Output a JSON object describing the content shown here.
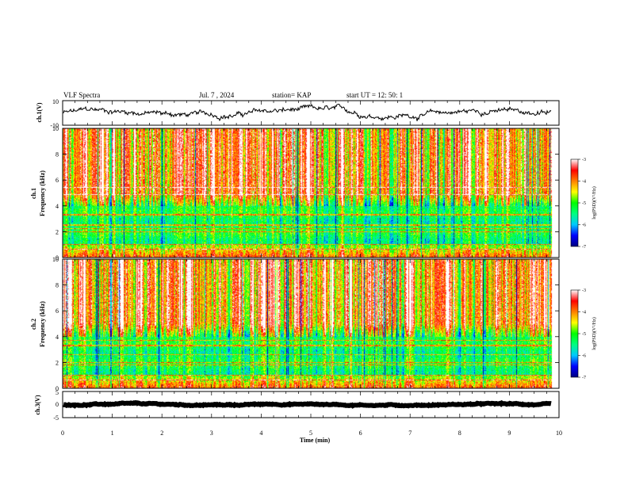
{
  "header": {
    "title": "VLF Spectra",
    "date": "Jul. 7 , 2024",
    "station": "station= KAP",
    "start": "start UT =  12: 50: 1"
  },
  "chart_data": [
    {
      "type": "line",
      "ylabel": "ch.1(V)",
      "xlim": [
        0,
        10
      ],
      "ylim": [
        -10,
        10
      ],
      "y_tick_labels": [
        "10",
        "-10"
      ],
      "series": [
        {
          "color": "#000000"
        }
      ],
      "signal_mean": 0,
      "signal_amplitude": 5
    },
    {
      "type": "heatmap",
      "ylabel_top": "ch.1",
      "ylabel": "Frequency (kHz)",
      "xlim": [
        0,
        10
      ],
      "ylim": [
        0,
        10
      ],
      "data_end_x": 9.85,
      "y_tick_labels": [
        "0",
        "2",
        "4",
        "6",
        "8",
        "10"
      ],
      "colorbar": {
        "label": "log(PSD)(V²/Hz)",
        "range": [
          -7,
          -3
        ],
        "tick_labels": [
          "-3",
          "-4",
          "-5",
          "-6",
          "-7"
        ],
        "colors": [
          "#000080",
          "#0000ff",
          "#00c8ff",
          "#00ff80",
          "#00ff00",
          "#ffff00",
          "#ff8000",
          "#ff0000",
          "#ffffff"
        ]
      },
      "narrowband_lines_khz": [
        4.9,
        5.45,
        3.3,
        2.5,
        2.2,
        2.0,
        1.0,
        0.6
      ]
    },
    {
      "type": "heatmap",
      "ylabel_top": "ch.2",
      "ylabel": "Frequency (kHz)",
      "xlim": [
        0,
        10
      ],
      "ylim": [
        0,
        10
      ],
      "data_end_x": 9.85,
      "y_tick_labels": [
        "0",
        "2",
        "4",
        "6",
        "8",
        "10"
      ],
      "colorbar": {
        "label": "log(PSD)(V²/Hz)",
        "range": [
          -7,
          -3
        ],
        "tick_labels": [
          "-3",
          "-4",
          "-5",
          "-6",
          "-7"
        ],
        "colors": [
          "#000080",
          "#0000ff",
          "#00c8ff",
          "#00ff80",
          "#00ff00",
          "#ffff00",
          "#ff8000",
          "#ff0000",
          "#ffffff"
        ]
      },
      "narrowband_lines_khz": [
        3.7,
        3.3,
        2.6,
        2.0,
        1.8,
        1.0,
        0.6
      ]
    },
    {
      "type": "line",
      "ylabel": "ch.3(V)",
      "xlim": [
        0,
        10
      ],
      "ylim": [
        -5,
        5
      ],
      "y_tick_labels": [
        "5",
        "0",
        "-5"
      ],
      "series": [
        {
          "color": "#000000"
        }
      ],
      "signal_mean": 0,
      "signal_amplitude": 0.5
    }
  ],
  "xaxis": {
    "label": "Time (min)",
    "tick_labels": [
      "0",
      "1",
      "2",
      "3",
      "4",
      "5",
      "6",
      "7",
      "8",
      "9",
      "10"
    ]
  }
}
